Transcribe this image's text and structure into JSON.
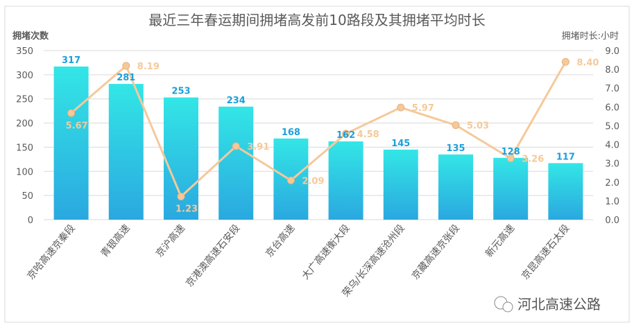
{
  "chart_data": {
    "type": "bar+line",
    "title": "最近三年春运期间拥堵高发前10路段及其拥堵平均时长",
    "ylabel": "拥堵次数",
    "y2label": "拥堵时长:小时",
    "ylim": [
      0,
      350
    ],
    "y2lim": [
      0,
      9
    ],
    "yticks": [
      0,
      50,
      100,
      150,
      200,
      250,
      300,
      350
    ],
    "y2ticks": [
      "0.0",
      "1.0",
      "2.0",
      "3.0",
      "4.0",
      "5.0",
      "6.0",
      "7.0",
      "8.0",
      "9.0"
    ],
    "grid": true,
    "categories": [
      "京哈高速京秦段",
      "青银高速",
      "京沪高速",
      "京港澳高速石安段",
      "京台高速",
      "大广高速衡大段",
      "荣乌/长深高速沧州段",
      "京藏高速京张段",
      "新元高速",
      "京昆高速石太段"
    ],
    "series": [
      {
        "type": "bar",
        "axis": "left",
        "values": [
          317,
          281,
          253,
          234,
          168,
          162,
          145,
          135,
          128,
          117
        ],
        "color": "#29b6e8"
      },
      {
        "type": "line",
        "axis": "right",
        "values": [
          5.67,
          8.19,
          1.23,
          3.91,
          2.09,
          4.58,
          5.97,
          5.03,
          3.26,
          8.4
        ],
        "color": "#f5c99a"
      }
    ]
  },
  "watermark": "河北高速公路"
}
